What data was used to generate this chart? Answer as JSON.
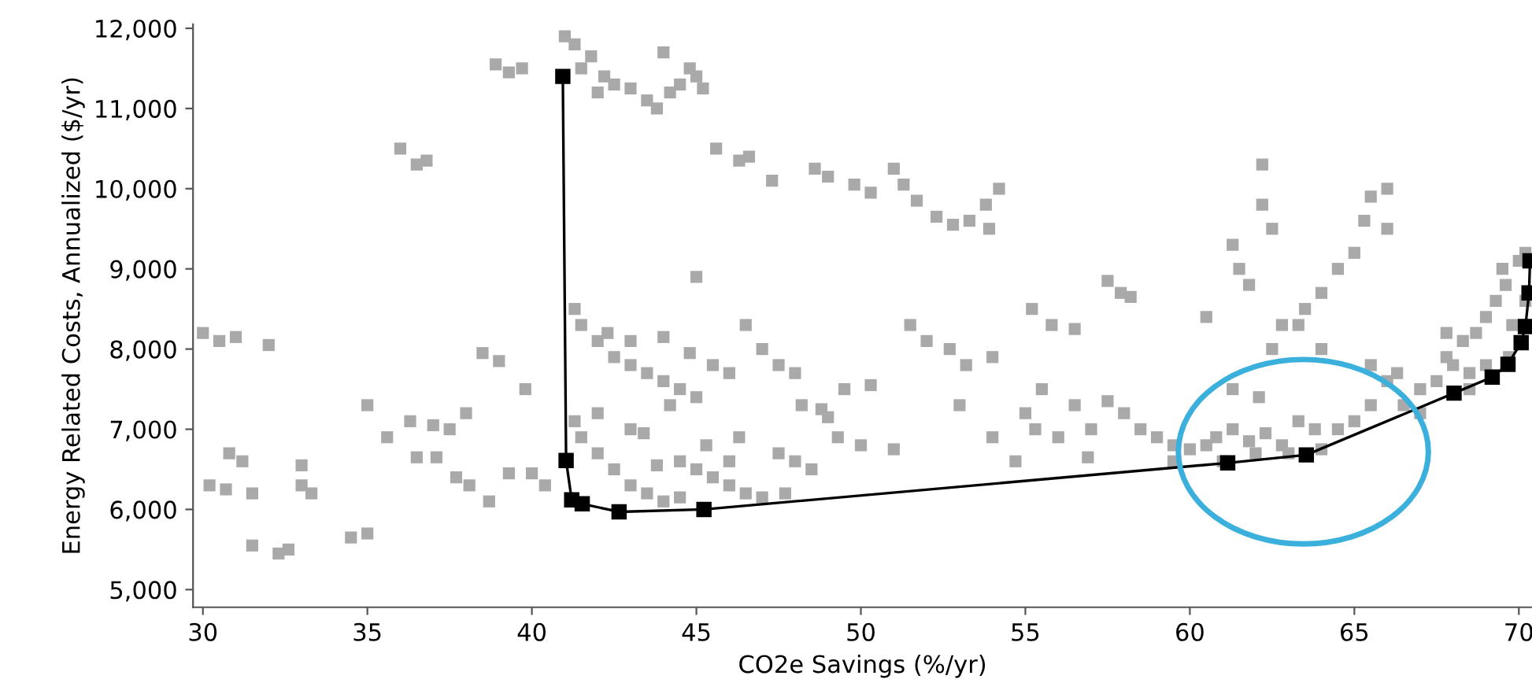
{
  "chart_data": {
    "type": "scatter",
    "xlabel": "CO2e Savings (%/yr)",
    "ylabel": "Energy Related Costs, Annualized ($/yr)",
    "marker": "square",
    "grid": false,
    "xlim": [
      29.7,
      70.4
    ],
    "ylim": [
      4780,
      12050
    ],
    "xticks": [
      30,
      35,
      40,
      45,
      50,
      55,
      60,
      65,
      70
    ],
    "yticks": [
      {
        "value": 5000,
        "label": "5,000"
      },
      {
        "value": 6000,
        "label": "6,000"
      },
      {
        "value": 7000,
        "label": "7,000"
      },
      {
        "value": 8000,
        "label": "8,000"
      },
      {
        "value": 9000,
        "label": "9,000"
      },
      {
        "value": 10000,
        "label": "10,000"
      },
      {
        "value": 11000,
        "label": "11,000"
      },
      {
        "value": 12000,
        "label": "12,000"
      }
    ],
    "series": [
      {
        "color": "#a9a9a9",
        "x": [
          30,
          30.5,
          31,
          32,
          30.2,
          30.7,
          31.5,
          30.8,
          31.2,
          31.5,
          32.3,
          32.6,
          33,
          33,
          33.3,
          34.5,
          35,
          35,
          35.6,
          36,
          36.5,
          36.8,
          36.3,
          37,
          37.5,
          38,
          36.5,
          37.1,
          37.7,
          38.1,
          38.7,
          38.5,
          39,
          39.8,
          39.3,
          40,
          40.4,
          38.9,
          39.3,
          39.7,
          41,
          41.3,
          41.8,
          41.5,
          42.2,
          42.5,
          43,
          43.5,
          43.8,
          44.2,
          44.5,
          44.8,
          45,
          44,
          45.2,
          42,
          41.3,
          41.5,
          42,
          42.5,
          43,
          43.5,
          44,
          44.5,
          45,
          42.3,
          43,
          44,
          44.8,
          45.5,
          46,
          45,
          46.5,
          47,
          47.5,
          48,
          48.2,
          48.8,
          49,
          49.3,
          50,
          51,
          49.5,
          50.3,
          41.3,
          41.5,
          42,
          42.5,
          43,
          43.5,
          44,
          44.5,
          42,
          43,
          43.4,
          43.8,
          44.5,
          45,
          45.5,
          46,
          46.5,
          47,
          47.7,
          46.3,
          46,
          47.5,
          48,
          48.5,
          44.2,
          45.3,
          45.6,
          46.3,
          46.6,
          47.3,
          48.6,
          49,
          49.8,
          50.3,
          51,
          51.3,
          51.7,
          52.3,
          52.8,
          53.3,
          53.8,
          54.2,
          53.9,
          51.5,
          52,
          52.7,
          53.2,
          54,
          55.2,
          55.8,
          56.5,
          57.5,
          57.9,
          58.2,
          55.5,
          55,
          55.3,
          54.7,
          56.5,
          57.5,
          58,
          58.5,
          59,
          59.5,
          60,
          60.5,
          56,
          57,
          53,
          54,
          56.9,
          60.8,
          61.3,
          61.8,
          62.3,
          62.8,
          63.3,
          63.8,
          64,
          64.5,
          65,
          65.5,
          66,
          65.5,
          66.3,
          61,
          62,
          63,
          59.5,
          61.3,
          61.5,
          61.8,
          62.2,
          62.2,
          62.5,
          60.5,
          62.8,
          63.5,
          64,
          64.5,
          65,
          65.3,
          65.5,
          66,
          66,
          63.3,
          62.5,
          64,
          61.3,
          62.1,
          66.5,
          67,
          67.5,
          68,
          68.3,
          68.7,
          69,
          69.3,
          69.6,
          70,
          70.2,
          67.8,
          67.8,
          69.5,
          70.2,
          69.8,
          68.5,
          69,
          68.5,
          67,
          69.7
        ],
        "values": [
          8200,
          8100,
          8150,
          8050,
          6300,
          6250,
          6200,
          6700,
          6600,
          5550,
          5450,
          5500,
          6550,
          6300,
          6200,
          5650,
          5700,
          7300,
          6900,
          10500,
          10300,
          10350,
          7100,
          7050,
          7000,
          7200,
          6650,
          6650,
          6400,
          6300,
          6100,
          7950,
          7850,
          7500,
          6450,
          6450,
          6300,
          11550,
          11450,
          11500,
          11900,
          11800,
          11650,
          11500,
          11400,
          11300,
          11250,
          11100,
          11000,
          11200,
          11300,
          11500,
          11400,
          11700,
          11250,
          11200,
          8500,
          8300,
          8100,
          7900,
          7800,
          7700,
          7600,
          7500,
          7400,
          8200,
          8100,
          8150,
          7950,
          7800,
          7700,
          8900,
          8300,
          8000,
          7800,
          7700,
          7300,
          7250,
          7150,
          6900,
          6800,
          6750,
          7500,
          7550,
          7100,
          6900,
          6700,
          6500,
          6300,
          6200,
          6100,
          6150,
          7200,
          7000,
          6950,
          6550,
          6600,
          6500,
          6400,
          6300,
          6200,
          6150,
          6200,
          6900,
          6600,
          6700,
          6600,
          6500,
          7300,
          6800,
          10500,
          10350,
          10400,
          10100,
          10250,
          10150,
          10050,
          9950,
          10250,
          10050,
          9850,
          9650,
          9550,
          9600,
          9800,
          10000,
          9500,
          8300,
          8100,
          8000,
          7800,
          7900,
          8500,
          8300,
          8250,
          8850,
          8700,
          8650,
          7500,
          7200,
          7000,
          6600,
          7300,
          7350,
          7200,
          7000,
          6900,
          6800,
          6750,
          6800,
          6900,
          7000,
          7300,
          6900,
          6650,
          6900,
          7000,
          6850,
          6950,
          6800,
          7100,
          7000,
          6750,
          7000,
          7100,
          7300,
          7600,
          7800,
          7700,
          6600,
          6700,
          6700,
          6600,
          9300,
          9000,
          8800,
          10300,
          9800,
          9500,
          8400,
          8300,
          8500,
          8700,
          9000,
          9200,
          9600,
          9900,
          10000,
          9500,
          8300,
          8000,
          8000,
          7500,
          7400,
          7300,
          7500,
          7600,
          7800,
          8100,
          8200,
          8400,
          8600,
          8800,
          9100,
          9200,
          8200,
          7900,
          9000,
          8600,
          8300,
          7700,
          7800,
          7500,
          7200,
          7900
        ]
      },
      {
        "type": "line",
        "color": "#000000",
        "x": [
          40.94,
          41.04,
          41.21,
          41.53,
          42.65,
          45.23,
          61.15,
          63.54,
          68.03,
          69.19,
          69.67,
          70.07,
          70.2,
          70.31,
          70.34
        ],
        "values": [
          11400,
          6610,
          6120,
          6070,
          5970,
          6000,
          6580,
          6680,
          7450,
          7650,
          7810,
          8080,
          8280,
          8700,
          9100
        ]
      }
    ]
  }
}
